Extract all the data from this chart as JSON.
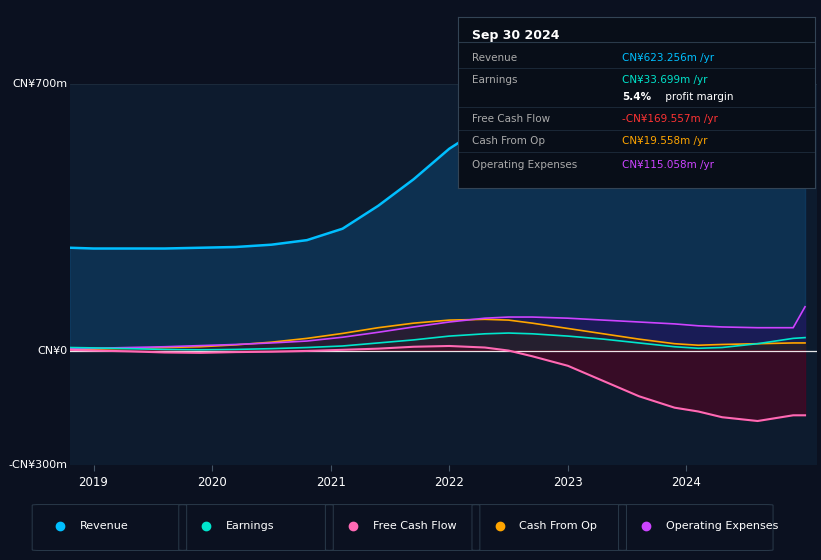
{
  "bg_color": "#0b1120",
  "plot_bg_color": "#0d1b2e",
  "title_box": {
    "date": "Sep 30 2024",
    "rows": [
      {
        "label": "Revenue",
        "value": "CN¥623.256m /yr",
        "value_color": "#00bfff"
      },
      {
        "label": "Earnings",
        "value": "CN¥33.699m /yr",
        "value_color": "#00e5cc"
      },
      {
        "label": "",
        "value2a": "5.4%",
        "value2b": " profit margin"
      },
      {
        "label": "Free Cash Flow",
        "value": "-CN¥169.557m /yr",
        "value_color": "#ff3333"
      },
      {
        "label": "Cash From Op",
        "value": "CN¥19.558m /yr",
        "value_color": "#ffa500"
      },
      {
        "label": "Operating Expenses",
        "value": "CN¥115.058m /yr",
        "value_color": "#cc44ff"
      }
    ]
  },
  "ylabel_top": "CN¥700m",
  "ylabel_zero": "CN¥0",
  "ylabel_bottom": "-CN¥300m",
  "x_labels": [
    "2019",
    "2020",
    "2021",
    "2022",
    "2023",
    "2024"
  ],
  "ylim": [
    -300,
    700
  ],
  "legend": [
    {
      "label": "Revenue",
      "color": "#00bfff"
    },
    {
      "label": "Earnings",
      "color": "#00e5cc"
    },
    {
      "label": "Free Cash Flow",
      "color": "#ff69b4"
    },
    {
      "label": "Cash From Op",
      "color": "#ffa500"
    },
    {
      "label": "Operating Expenses",
      "color": "#cc44ff"
    }
  ],
  "series": {
    "x": [
      2018.8,
      2019.0,
      2019.3,
      2019.6,
      2019.9,
      2020.2,
      2020.5,
      2020.8,
      2021.1,
      2021.4,
      2021.7,
      2022.0,
      2022.3,
      2022.5,
      2022.7,
      2023.0,
      2023.3,
      2023.6,
      2023.9,
      2024.1,
      2024.3,
      2024.6,
      2024.9,
      2025.0
    ],
    "revenue": [
      270,
      268,
      268,
      268,
      270,
      272,
      278,
      290,
      320,
      380,
      450,
      530,
      590,
      610,
      610,
      605,
      590,
      565,
      510,
      470,
      480,
      540,
      620,
      623
    ],
    "earnings": [
      8,
      7,
      5,
      3,
      2,
      3,
      5,
      8,
      12,
      20,
      28,
      38,
      44,
      46,
      44,
      38,
      30,
      20,
      10,
      6,
      8,
      18,
      32,
      34
    ],
    "free_cash_flow": [
      2,
      0,
      -2,
      -5,
      -6,
      -4,
      -3,
      -1,
      2,
      5,
      10,
      12,
      8,
      0,
      -15,
      -40,
      -80,
      -120,
      -150,
      -160,
      -175,
      -185,
      -170,
      -170
    ],
    "cash_from_op": [
      3,
      4,
      6,
      8,
      10,
      15,
      22,
      32,
      45,
      60,
      72,
      80,
      82,
      80,
      72,
      58,
      44,
      30,
      18,
      14,
      16,
      18,
      20,
      20
    ],
    "operating_expenses": [
      5,
      6,
      8,
      10,
      13,
      16,
      20,
      25,
      35,
      48,
      62,
      75,
      85,
      88,
      88,
      85,
      80,
      75,
      70,
      65,
      62,
      60,
      60,
      115
    ]
  }
}
